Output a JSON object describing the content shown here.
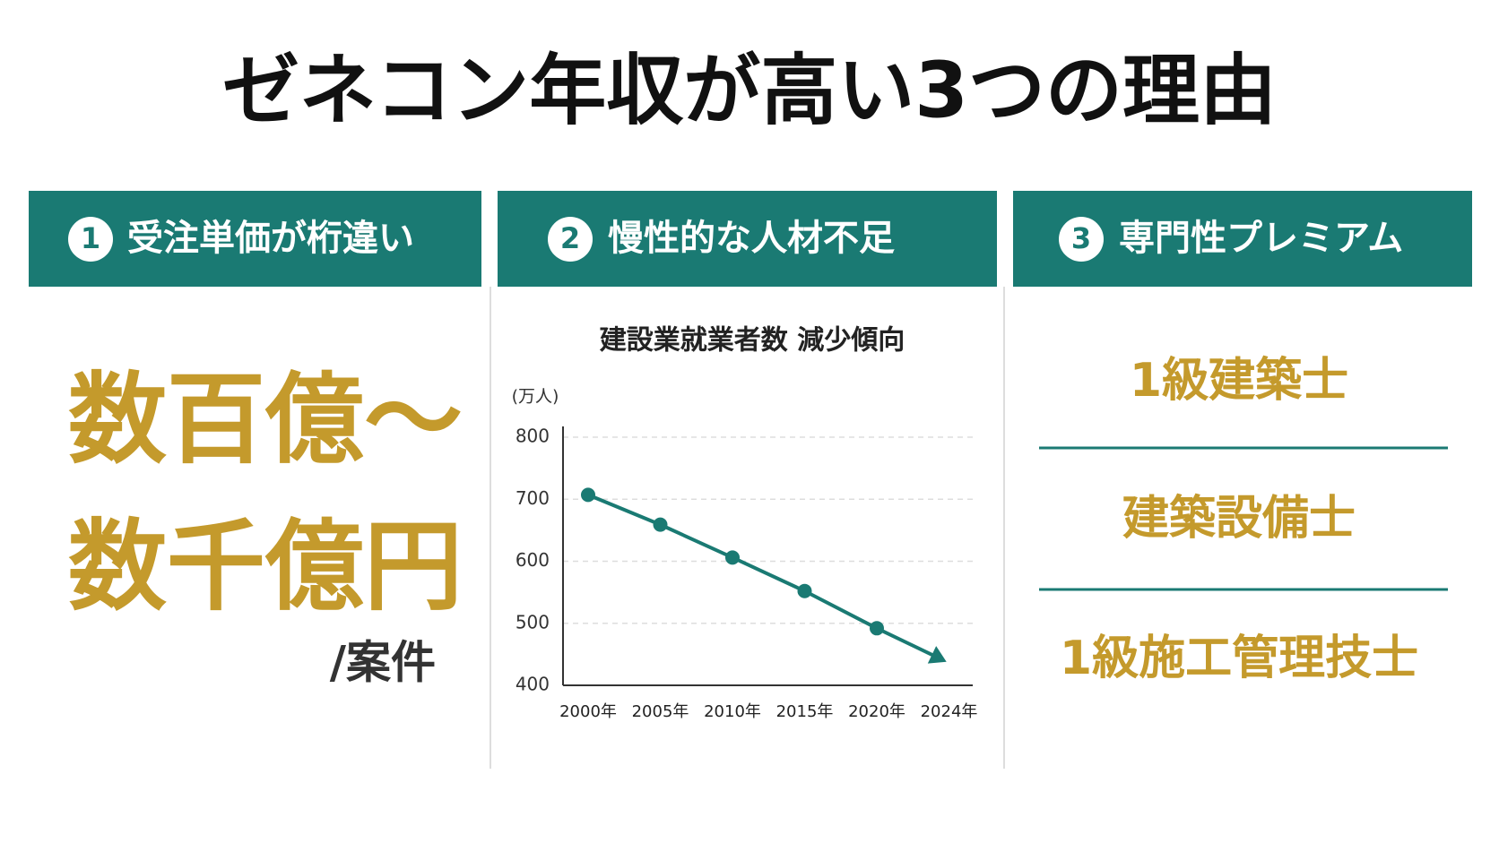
{
  "title": "ゼネコン年収が高い3つの理由",
  "panels": [
    {
      "number": "1",
      "heading": "受注単価が桁違い",
      "lines": [
        "数百億～",
        "数千億円"
      ],
      "note": "/案件"
    },
    {
      "number": "2",
      "heading": "慢性的な人材不足"
    },
    {
      "number": "3",
      "heading": "専門性プレミアム",
      "items": [
        "1級建築士",
        "建築設備士",
        "1級施工管理技士"
      ]
    }
  ],
  "chart_data": {
    "type": "line",
    "title": "建設業就業者数 減少傾向",
    "y_label": "(万人)",
    "categories": [
      "2000年",
      "2005年",
      "2010年",
      "2015年",
      "2020年",
      "2024年"
    ],
    "values": [
      707,
      659,
      606,
      552,
      492,
      443
    ],
    "color": "#1a7a73",
    "ylim": [
      400,
      800
    ],
    "yticks": [
      400,
      500,
      600,
      700,
      800
    ],
    "grid": true
  }
}
